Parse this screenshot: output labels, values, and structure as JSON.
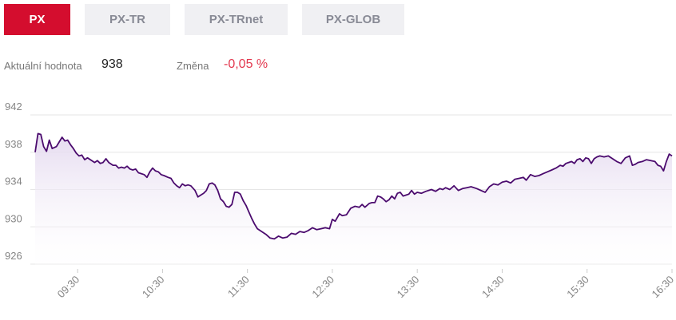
{
  "tabs": [
    {
      "label": "PX",
      "active": true
    },
    {
      "label": "PX-TR",
      "active": false
    },
    {
      "label": "PX-TRnet",
      "active": false
    },
    {
      "label": "PX-GLOB",
      "active": false
    }
  ],
  "stats": {
    "value_label": "Aktuální hodnota",
    "value": "938",
    "change_label": "Změna",
    "change": "-0,05 %"
  },
  "colors": {
    "accent": "#d40d2e",
    "line": "#4b0b6e",
    "area": "#ece4f3",
    "negative": "#e3384f"
  },
  "chart_data": {
    "type": "area",
    "ylim": [
      926,
      943
    ],
    "yticks": [
      926,
      930,
      934,
      938,
      942
    ],
    "xlim": [
      "09:00",
      "16:30"
    ],
    "xticks": [
      "09:30",
      "10:30",
      "11:30",
      "12:30",
      "13:30",
      "14:30",
      "15:30",
      "16:30"
    ],
    "grid": true,
    "points": [
      [
        "09:00",
        938.0
      ],
      [
        "09:02",
        940.0
      ],
      [
        "09:04",
        939.9
      ],
      [
        "09:06",
        938.6
      ],
      [
        "09:08",
        938.1
      ],
      [
        "09:10",
        939.3
      ],
      [
        "09:12",
        938.4
      ],
      [
        "09:15",
        938.6
      ],
      [
        "09:17",
        939.1
      ],
      [
        "09:19",
        939.6
      ],
      [
        "09:21",
        939.2
      ],
      [
        "09:23",
        939.3
      ],
      [
        "09:25",
        938.8
      ],
      [
        "09:27",
        938.4
      ],
      [
        "09:29",
        937.9
      ],
      [
        "09:31",
        937.6
      ],
      [
        "09:33",
        937.7
      ],
      [
        "09:35",
        937.2
      ],
      [
        "09:37",
        937.4
      ],
      [
        "09:40",
        937.1
      ],
      [
        "09:42",
        936.9
      ],
      [
        "09:44",
        937.1
      ],
      [
        "09:46",
        936.8
      ],
      [
        "09:48",
        936.9
      ],
      [
        "09:50",
        937.3
      ],
      [
        "09:52",
        936.9
      ],
      [
        "09:55",
        936.6
      ],
      [
        "09:57",
        936.6
      ],
      [
        "09:59",
        936.3
      ],
      [
        "10:01",
        936.4
      ],
      [
        "10:03",
        936.3
      ],
      [
        "10:05",
        936.5
      ],
      [
        "10:07",
        936.2
      ],
      [
        "10:09",
        936.1
      ],
      [
        "10:11",
        936.2
      ],
      [
        "10:13",
        935.8
      ],
      [
        "10:15",
        935.7
      ],
      [
        "10:17",
        935.6
      ],
      [
        "10:19",
        935.3
      ],
      [
        "10:21",
        935.9
      ],
      [
        "10:23",
        936.3
      ],
      [
        "10:25",
        936.0
      ],
      [
        "10:27",
        935.9
      ],
      [
        "10:29",
        935.6
      ],
      [
        "10:31",
        935.5
      ],
      [
        "10:34",
        935.3
      ],
      [
        "10:36",
        935.2
      ],
      [
        "10:38",
        934.7
      ],
      [
        "10:40",
        934.4
      ],
      [
        "10:42",
        934.2
      ],
      [
        "10:44",
        934.6
      ],
      [
        "10:46",
        934.4
      ],
      [
        "10:48",
        934.5
      ],
      [
        "10:50",
        934.4
      ],
      [
        "10:53",
        933.9
      ],
      [
        "10:55",
        933.2
      ],
      [
        "10:57",
        933.4
      ],
      [
        "10:59",
        933.6
      ],
      [
        "11:01",
        933.9
      ],
      [
        "11:03",
        934.6
      ],
      [
        "11:05",
        934.7
      ],
      [
        "11:07",
        934.5
      ],
      [
        "11:09",
        933.9
      ],
      [
        "11:11",
        933.0
      ],
      [
        "11:13",
        932.7
      ],
      [
        "11:15",
        932.2
      ],
      [
        "11:17",
        932.1
      ],
      [
        "11:19",
        932.4
      ],
      [
        "11:21",
        933.7
      ],
      [
        "11:23",
        933.7
      ],
      [
        "11:25",
        933.5
      ],
      [
        "11:27",
        932.8
      ],
      [
        "11:29",
        932.3
      ],
      [
        "11:31",
        931.6
      ],
      [
        "11:33",
        930.9
      ],
      [
        "11:35",
        930.3
      ],
      [
        "11:37",
        929.8
      ],
      [
        "11:40",
        929.5
      ],
      [
        "11:43",
        929.2
      ],
      [
        "11:46",
        928.8
      ],
      [
        "11:49",
        928.7
      ],
      [
        "11:52",
        929.0
      ],
      [
        "11:55",
        928.8
      ],
      [
        "11:58",
        928.9
      ],
      [
        "12:01",
        929.3
      ],
      [
        "12:04",
        929.2
      ],
      [
        "12:07",
        929.5
      ],
      [
        "12:10",
        929.4
      ],
      [
        "12:13",
        929.6
      ],
      [
        "12:16",
        929.9
      ],
      [
        "12:19",
        929.7
      ],
      [
        "12:22",
        929.8
      ],
      [
        "12:25",
        929.9
      ],
      [
        "12:28",
        929.8
      ],
      [
        "12:30",
        930.8
      ],
      [
        "12:32",
        930.6
      ],
      [
        "12:35",
        931.4
      ],
      [
        "12:37",
        931.2
      ],
      [
        "12:40",
        931.3
      ],
      [
        "12:43",
        932.0
      ],
      [
        "12:46",
        932.2
      ],
      [
        "12:49",
        932.1
      ],
      [
        "12:51",
        932.4
      ],
      [
        "12:53",
        932.1
      ],
      [
        "12:56",
        932.5
      ],
      [
        "12:58",
        932.6
      ],
      [
        "13:00",
        932.6
      ],
      [
        "13:02",
        933.3
      ],
      [
        "13:04",
        933.2
      ],
      [
        "13:06",
        933.0
      ],
      [
        "13:08",
        932.7
      ],
      [
        "13:10",
        932.9
      ],
      [
        "13:12",
        933.3
      ],
      [
        "13:14",
        933.0
      ],
      [
        "13:16",
        933.6
      ],
      [
        "13:18",
        933.7
      ],
      [
        "13:20",
        933.3
      ],
      [
        "13:22",
        933.4
      ],
      [
        "13:24",
        933.5
      ],
      [
        "13:26",
        933.9
      ],
      [
        "13:28",
        933.5
      ],
      [
        "13:30",
        933.7
      ],
      [
        "13:33",
        933.6
      ],
      [
        "13:36",
        933.8
      ],
      [
        "13:40",
        934.0
      ],
      [
        "13:43",
        933.8
      ],
      [
        "13:46",
        934.1
      ],
      [
        "13:48",
        934.0
      ],
      [
        "13:50",
        934.2
      ],
      [
        "13:53",
        934.0
      ],
      [
        "13:56",
        934.4
      ],
      [
        "13:59",
        933.9
      ],
      [
        "14:02",
        934.1
      ],
      [
        "14:05",
        934.2
      ],
      [
        "14:08",
        934.3
      ],
      [
        "14:12",
        934.1
      ],
      [
        "14:15",
        933.9
      ],
      [
        "14:18",
        933.7
      ],
      [
        "14:21",
        934.3
      ],
      [
        "14:24",
        934.6
      ],
      [
        "14:27",
        934.5
      ],
      [
        "14:30",
        934.8
      ],
      [
        "14:33",
        934.9
      ],
      [
        "14:36",
        934.7
      ],
      [
        "14:39",
        935.1
      ],
      [
        "14:42",
        935.2
      ],
      [
        "14:45",
        935.3
      ],
      [
        "14:47",
        935.0
      ],
      [
        "14:50",
        935.6
      ],
      [
        "14:53",
        935.4
      ],
      [
        "14:56",
        935.5
      ],
      [
        "14:59",
        935.7
      ],
      [
        "15:02",
        935.9
      ],
      [
        "15:05",
        936.1
      ],
      [
        "15:08",
        936.3
      ],
      [
        "15:11",
        936.6
      ],
      [
        "15:13",
        936.5
      ],
      [
        "15:15",
        936.8
      ],
      [
        "15:17",
        936.9
      ],
      [
        "15:19",
        937.0
      ],
      [
        "15:21",
        936.8
      ],
      [
        "15:23",
        937.2
      ],
      [
        "15:25",
        937.3
      ],
      [
        "15:27",
        937.0
      ],
      [
        "15:29",
        937.4
      ],
      [
        "15:31",
        937.3
      ],
      [
        "15:33",
        936.8
      ],
      [
        "15:35",
        937.3
      ],
      [
        "15:37",
        937.5
      ],
      [
        "15:39",
        937.6
      ],
      [
        "15:42",
        937.5
      ],
      [
        "15:45",
        937.6
      ],
      [
        "15:48",
        937.3
      ],
      [
        "15:51",
        937.0
      ],
      [
        "15:54",
        936.8
      ],
      [
        "15:57",
        937.4
      ],
      [
        "16:00",
        937.6
      ],
      [
        "16:02",
        936.6
      ],
      [
        "16:04",
        936.7
      ],
      [
        "16:06",
        936.9
      ],
      [
        "16:09",
        937.0
      ],
      [
        "16:12",
        937.2
      ],
      [
        "16:15",
        937.1
      ],
      [
        "16:18",
        937.0
      ],
      [
        "16:20",
        936.6
      ],
      [
        "16:22",
        936.5
      ],
      [
        "16:24",
        936.0
      ],
      [
        "16:26",
        937.0
      ],
      [
        "16:28",
        937.8
      ],
      [
        "16:30",
        937.6
      ]
    ]
  }
}
